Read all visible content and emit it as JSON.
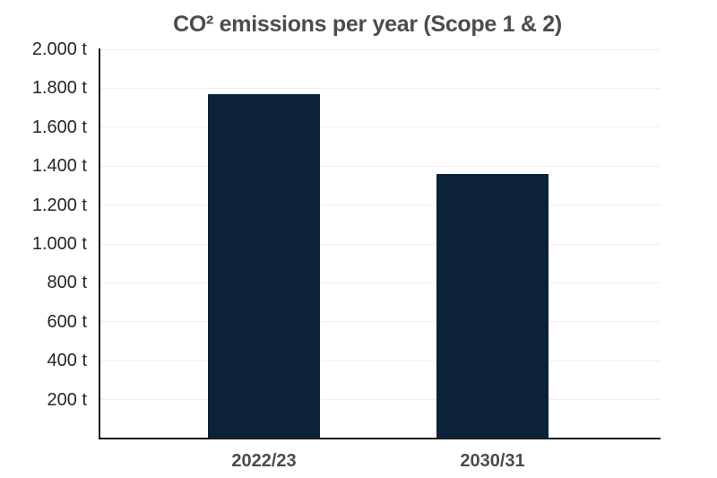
{
  "chart_data": {
    "type": "bar",
    "title": "CO² emissions per year (Scope 1 & 2)",
    "categories": [
      "2022/23",
      "2030/31"
    ],
    "values": [
      1770,
      1360
    ],
    "unit": "t",
    "xlabel": "",
    "ylabel": "",
    "ylim": [
      0,
      2000
    ],
    "ytick_step": 200,
    "yticks": [
      {
        "value": 2000,
        "label": "2.000 t"
      },
      {
        "value": 1800,
        "label": "1.800 t"
      },
      {
        "value": 1600,
        "label": "1.600 t"
      },
      {
        "value": 1400,
        "label": "1.400 t"
      },
      {
        "value": 1200,
        "label": "1.200 t"
      },
      {
        "value": 1000,
        "label": "1.000 t"
      },
      {
        "value": 800,
        "label": "800 t"
      },
      {
        "value": 600,
        "label": "600 t"
      },
      {
        "value": 400,
        "label": "400 t"
      },
      {
        "value": 200,
        "label": "200 t"
      }
    ],
    "grid": "horizontal-light",
    "legend": "none",
    "colors": {
      "bar": "#0b2238",
      "title_text": "#4c4c4c",
      "tick_text": "#262626",
      "axis_line": "#1c1c1c",
      "gridline": "#efefef",
      "background": "#ffffff"
    }
  }
}
